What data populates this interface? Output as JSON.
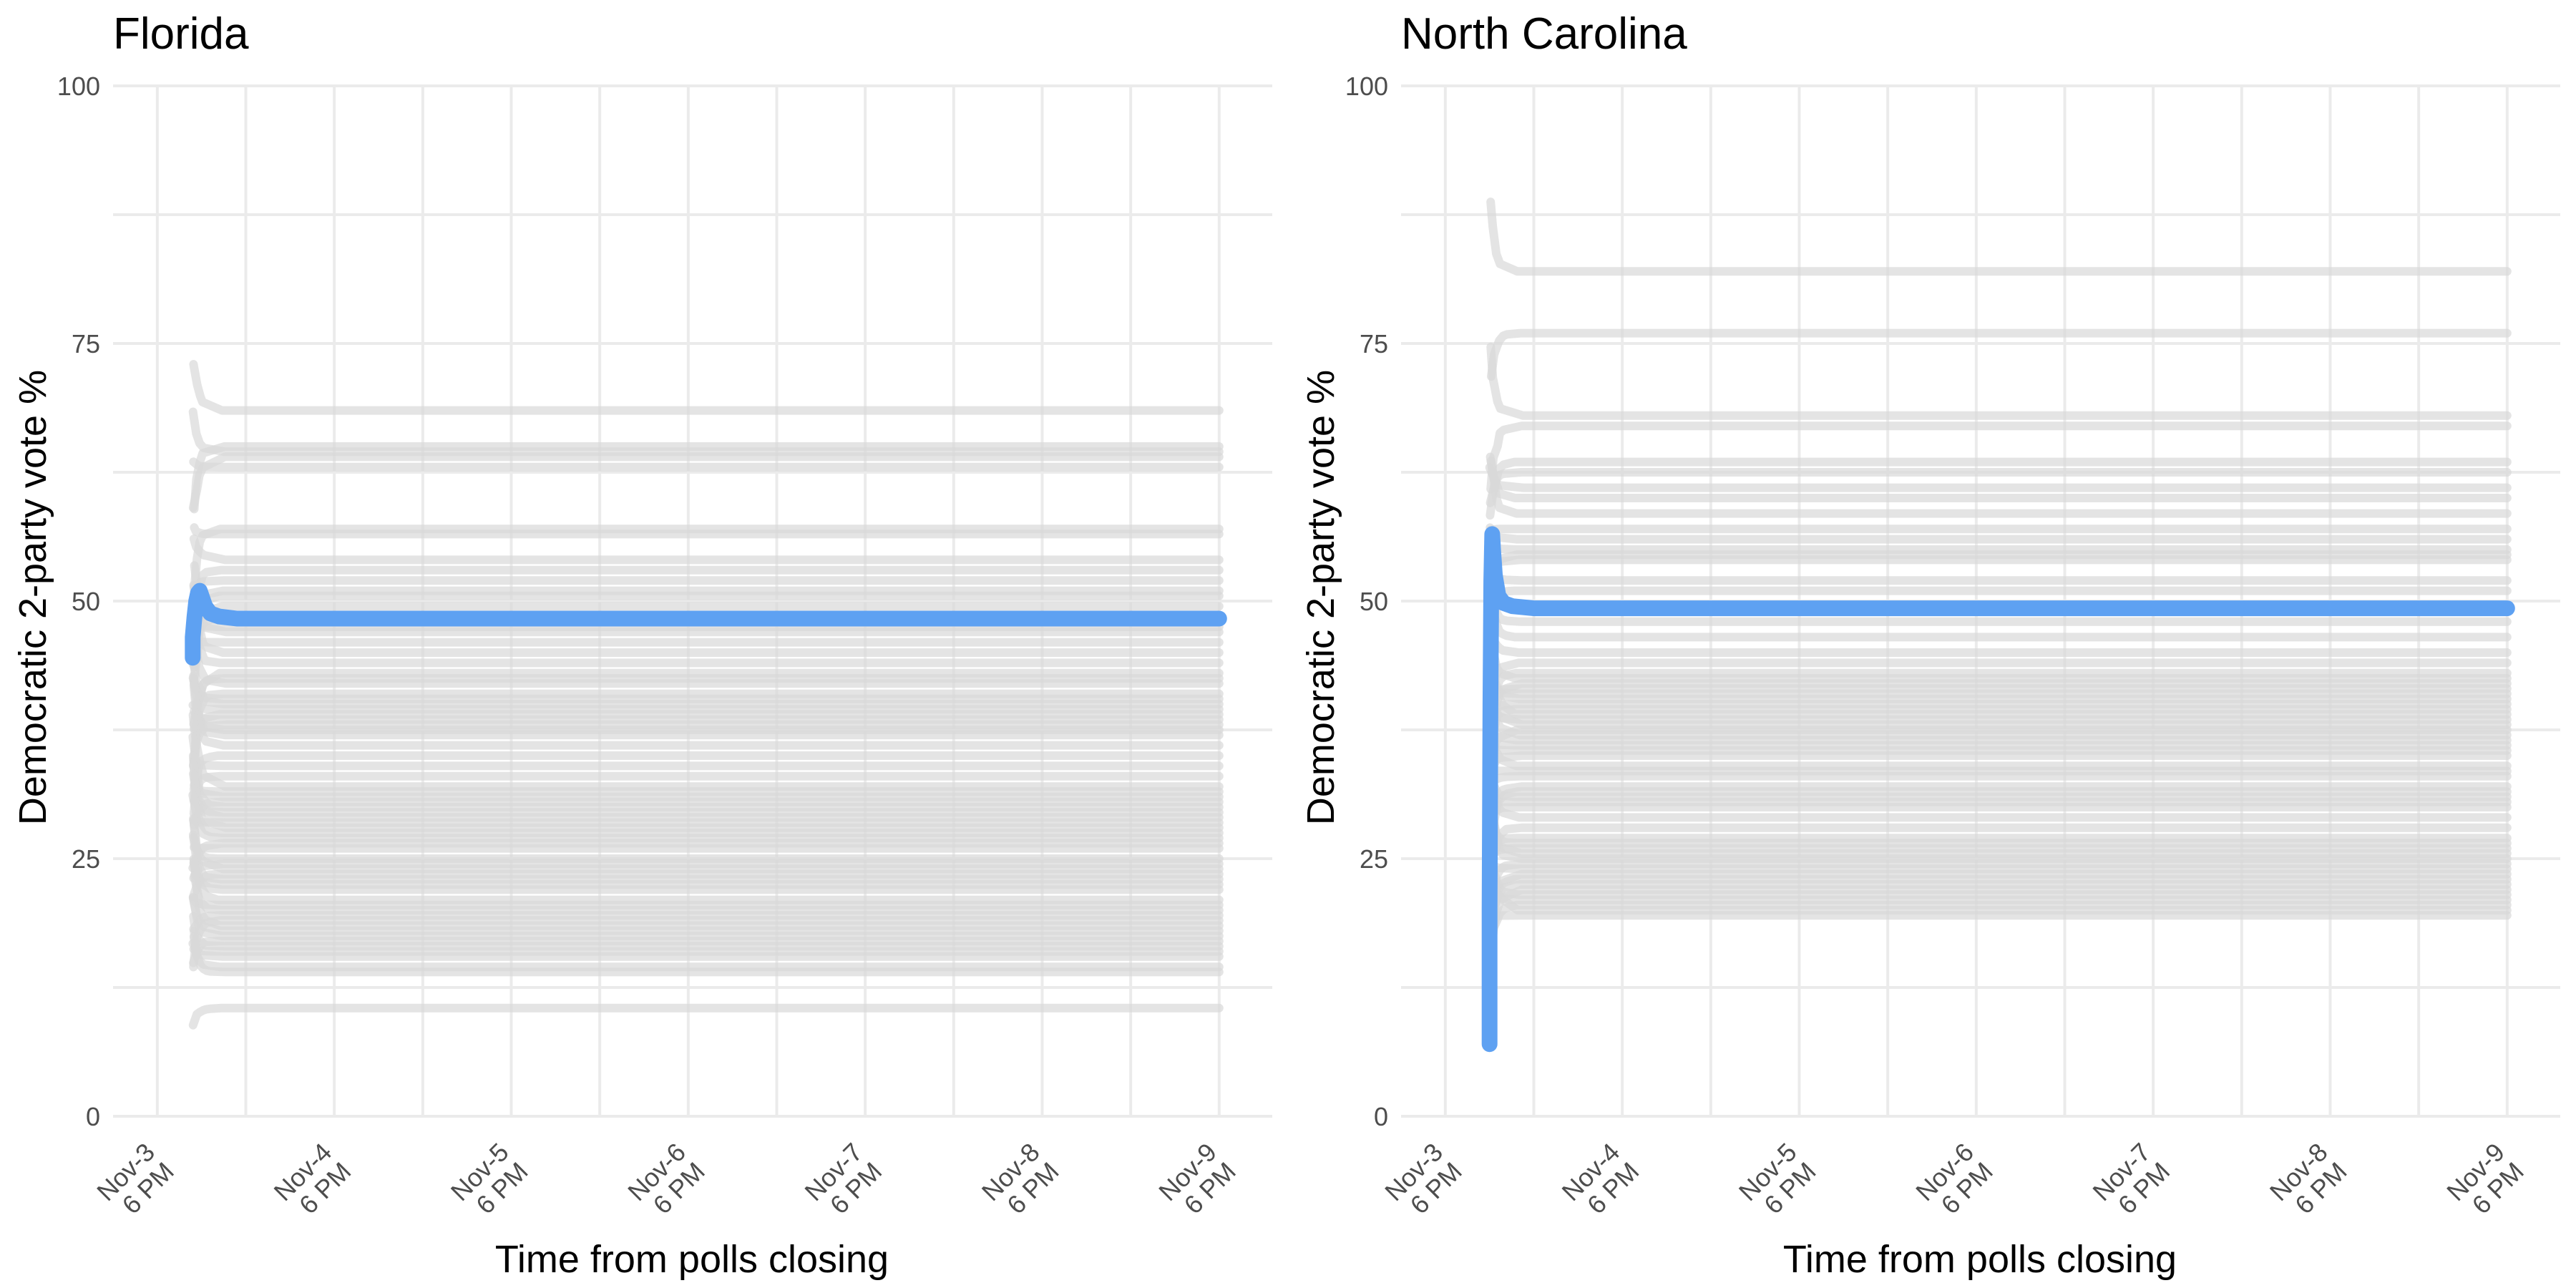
{
  "chart_data": [
    {
      "type": "line",
      "title": "Florida",
      "xlabel": "Time from polls closing",
      "ylabel": "Democratic 2-party vote %",
      "x_unit": "days after Nov-3 6 PM",
      "xlim": [
        -0.25,
        6.3
      ],
      "ylim": [
        0,
        100
      ],
      "x_ticks": [
        {
          "line1": "Nov-3",
          "line2": "6 PM"
        },
        {
          "line1": "Nov-4",
          "line2": "6 PM"
        },
        {
          "line1": "Nov-5",
          "line2": "6 PM"
        },
        {
          "line1": "Nov-6",
          "line2": "6 PM"
        },
        {
          "line1": "Nov-7",
          "line2": "6 PM"
        },
        {
          "line1": "Nov-8",
          "line2": "6 PM"
        },
        {
          "line1": "Nov-9",
          "line2": "6 PM"
        }
      ],
      "y_ticks": [
        0,
        25,
        50,
        75,
        100
      ],
      "grid": true,
      "legend": "none",
      "highlight_color": "#5ea1f2",
      "background_color": "#d9d9d9",
      "county_x_end": 6.0,
      "county_finals": [
        68.5,
        65.0,
        64.5,
        64.0,
        63.0,
        57.0,
        56.5,
        54.0,
        53.0,
        52.0,
        51.0,
        50.5,
        49.5,
        48.5,
        47.5,
        47.0,
        46.0,
        45.0,
        44.0,
        43.0,
        42.5,
        42.0,
        41.0,
        40.5,
        40.0,
        39.5,
        39.0,
        38.5,
        38.0,
        37.5,
        37.0,
        36.0,
        35.0,
        34.0,
        33.0,
        32.0,
        31.5,
        31.0,
        30.5,
        30.0,
        29.5,
        29.0,
        28.5,
        28.0,
        27.5,
        27.0,
        26.5,
        26.0,
        25.0,
        24.5,
        24.0,
        23.5,
        23.0,
        22.5,
        22.0,
        21.0,
        20.5,
        20.0,
        19.5,
        19.0,
        18.5,
        18.0,
        17.5,
        17.0,
        16.5,
        16.0,
        15.5,
        14.5,
        14.0,
        10.5
      ],
      "series": [
        {
          "name": "Florida",
          "x": [
            0.2,
            0.2,
            0.21,
            0.22,
            0.23,
            0.24,
            0.25,
            0.27,
            0.3,
            0.35,
            0.45,
            1.0,
            2.0,
            3.0,
            4.0,
            5.0,
            6.0
          ],
          "y": [
            44.5,
            46.5,
            48.5,
            50.0,
            50.8,
            51.0,
            50.5,
            49.5,
            48.8,
            48.5,
            48.3,
            48.3,
            48.3,
            48.3,
            48.3,
            48.3,
            48.3
          ]
        }
      ]
    },
    {
      "type": "line",
      "title": "North Carolina",
      "xlabel": "Time from polls closing",
      "ylabel": "Democratic 2-party vote %",
      "x_unit": "days after Nov-3 6 PM",
      "xlim": [
        -0.25,
        6.3
      ],
      "ylim": [
        0,
        100
      ],
      "x_ticks": [
        {
          "line1": "Nov-3",
          "line2": "6 PM"
        },
        {
          "line1": "Nov-4",
          "line2": "6 PM"
        },
        {
          "line1": "Nov-5",
          "line2": "6 PM"
        },
        {
          "line1": "Nov-6",
          "line2": "6 PM"
        },
        {
          "line1": "Nov-7",
          "line2": "6 PM"
        },
        {
          "line1": "Nov-8",
          "line2": "6 PM"
        },
        {
          "line1": "Nov-9",
          "line2": "6 PM"
        }
      ],
      "y_ticks": [
        0,
        25,
        50,
        75,
        100
      ],
      "grid": true,
      "legend": "none",
      "highlight_color": "#5ea1f2",
      "background_color": "#d9d9d9",
      "county_x_end": 6.0,
      "county_finals": [
        82.0,
        76.0,
        68.0,
        67.0,
        63.5,
        62.5,
        61.0,
        60.0,
        58.5,
        57.0,
        56.0,
        55.0,
        54.5,
        54.0,
        52.0,
        51.0,
        48.0,
        46.5,
        45.0,
        44.0,
        43.0,
        42.5,
        42.0,
        41.5,
        41.0,
        40.5,
        40.0,
        39.5,
        39.0,
        38.5,
        38.0,
        37.5,
        37.0,
        36.5,
        36.0,
        35.5,
        35.0,
        34.0,
        33.5,
        33.0,
        32.0,
        31.5,
        31.0,
        30.5,
        30.0,
        29.0,
        28.0,
        27.0,
        26.5,
        26.0,
        25.5,
        25.0,
        24.5,
        24.0,
        23.5,
        23.0,
        22.5,
        22.0,
        21.5,
        21.0,
        20.5,
        20.0,
        19.5
      ],
      "series": [
        {
          "name": "North Carolina",
          "x": [
            0.25,
            0.25,
            0.255,
            0.26,
            0.265,
            0.27,
            0.28,
            0.3,
            0.33,
            0.38,
            0.5,
            1.0,
            2.0,
            3.0,
            4.0,
            5.0,
            6.0
          ],
          "y": [
            7.0,
            20.0,
            40.0,
            52.0,
            56.5,
            55.0,
            52.5,
            50.5,
            49.8,
            49.5,
            49.3,
            49.3,
            49.3,
            49.3,
            49.3,
            49.3,
            49.3
          ]
        }
      ]
    }
  ]
}
